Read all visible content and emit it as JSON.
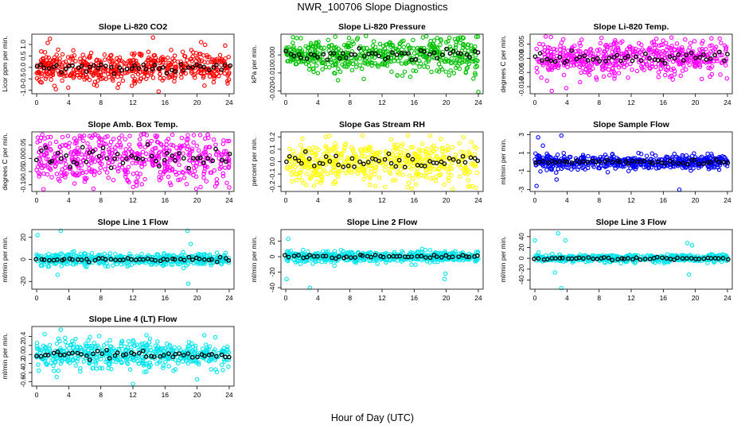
{
  "figure": {
    "title": "NWR_100706  Slope Diagnostics",
    "xlabel": "Hour of Day (UTC)"
  },
  "chart_data": [
    {
      "type": "scatter",
      "title": "Slope Li-820 CO2",
      "ylabel": "Licor ppm per min.",
      "color": "#ff0000",
      "ylim": [
        -1.15,
        1.45
      ],
      "yticks": [
        -1.0,
        -0.5,
        0.0,
        0.5,
        1.0
      ],
      "ytick_labels": [
        "-1.0",
        "-0.5",
        "0.0",
        "0.5",
        "1.0"
      ],
      "xlim": [
        -0.6,
        24.6
      ],
      "xticks": [
        0,
        4,
        8,
        12,
        16,
        20,
        24
      ],
      "xtick_labels": [
        "0",
        "4",
        "8",
        "12",
        "16",
        "20",
        "24"
      ],
      "spread": 0.35,
      "outliers": [
        [
          14.5,
          1.3
        ],
        [
          15.2,
          -1.05
        ],
        [
          2.4,
          -0.95
        ],
        [
          20.5,
          1.1
        ],
        [
          23.5,
          0.95
        ]
      ],
      "seed": 11
    },
    {
      "type": "scatter",
      "title": "Slope Li-820 Pressure",
      "ylabel": "kPa per min.",
      "color": "#00c000",
      "ylim": [
        -0.0215,
        0.0115
      ],
      "yticks": [
        -0.02,
        -0.01,
        0.0
      ],
      "ytick_labels": [
        "-0.020",
        "-0.010",
        "0.000"
      ],
      "xlim": [
        -0.6,
        24.6
      ],
      "xticks": [
        0,
        4,
        8,
        12,
        16,
        20,
        24
      ],
      "xtick_labels": [
        "0",
        "4",
        "8",
        "12",
        "16",
        "20",
        "24"
      ],
      "spread": 0.0045,
      "outliers": [
        [
          24.0,
          -0.0205
        ],
        [
          10.0,
          0.0105
        ],
        [
          6.5,
          -0.014
        ]
      ],
      "seed": 23
    },
    {
      "type": "scatter",
      "title": "Slope Li-820 Temp.",
      "ylabel": "degrees C per min.",
      "color": "#ff00ff",
      "ylim": [
        -0.0125,
        0.0085
      ],
      "yticks": [
        -0.01,
        -0.005,
        0.0,
        0.005
      ],
      "ytick_labels": [
        "-0.010",
        "-0.005",
        "0.000",
        "0.005"
      ],
      "xlim": [
        -0.6,
        24.6
      ],
      "xticks": [
        0,
        4,
        8,
        12,
        16,
        20,
        24
      ],
      "xtick_labels": [
        "0",
        "4",
        "8",
        "12",
        "16",
        "20",
        "24"
      ],
      "spread": 0.003,
      "outliers": [
        [
          2.0,
          0.0075
        ],
        [
          2.1,
          -0.0115
        ],
        [
          3.9,
          -0.0105
        ],
        [
          22.0,
          0.007
        ]
      ],
      "seed": 37
    },
    {
      "type": "scatter",
      "title": "Slope Amb. Box Temp.",
      "ylabel": "degrees C per min.",
      "color": "#ff00ff",
      "ylim": [
        -0.125,
        0.1
      ],
      "yticks": [
        -0.1,
        -0.05,
        0.0,
        0.05
      ],
      "ytick_labels": [
        "-0.10",
        "-0.05",
        "0.00",
        "0.05"
      ],
      "xlim": [
        -0.6,
        24.6
      ],
      "xticks": [
        0,
        4,
        8,
        12,
        16,
        20,
        24
      ],
      "xtick_labels": [
        "0",
        "4",
        "8",
        "12",
        "16",
        "20",
        "24"
      ],
      "spread": 0.05,
      "outliers": [
        [
          19.9,
          -0.115
        ],
        [
          24.0,
          -0.11
        ],
        [
          1.0,
          0.075
        ]
      ],
      "seed": 41
    },
    {
      "type": "scatter",
      "title": "Slope Gas Stream RH",
      "ylabel": "percent per min.",
      "color": "#ffff00",
      "ylim": [
        -0.24,
        0.24
      ],
      "yticks": [
        -0.2,
        -0.1,
        0.0,
        0.1,
        0.2
      ],
      "ytick_labels": [
        "-0.2",
        "-0.1",
        "0.0",
        "0.1",
        "0.2"
      ],
      "xlim": [
        -0.6,
        24.6
      ],
      "xticks": [
        0,
        4,
        8,
        12,
        16,
        20,
        24
      ],
      "xtick_labels": [
        "0",
        "4",
        "8",
        "12",
        "16",
        "20",
        "24"
      ],
      "spread": 0.085,
      "outliers": [
        [
          5.0,
          0.2
        ],
        [
          18.0,
          0.21
        ],
        [
          20.8,
          -0.22
        ]
      ],
      "seed": 53
    },
    {
      "type": "scatter",
      "title": "Slope Sample Flow",
      "ylabel": "ml/min per min.",
      "color": "#0000ff",
      "ylim": [
        -3.2,
        3.3
      ],
      "yticks": [
        -3,
        -1,
        1,
        3
      ],
      "ytick_labels": [
        "-3",
        "-1",
        "1",
        "3"
      ],
      "xlim": [
        -0.6,
        24.6
      ],
      "xticks": [
        0,
        4,
        8,
        12,
        16,
        20,
        24
      ],
      "xtick_labels": [
        "0",
        "4",
        "8",
        "12",
        "16",
        "20",
        "24"
      ],
      "spread": 0.35,
      "outliers": [
        [
          0.4,
          2.7
        ],
        [
          3.3,
          2.9
        ],
        [
          0.2,
          -2.6
        ],
        [
          18.0,
          -3.0
        ],
        [
          1.0,
          1.8
        ],
        [
          2.7,
          -1.9
        ],
        [
          22.0,
          0.9
        ]
      ],
      "seed": 67
    },
    {
      "type": "scatter",
      "title": "Slope Line 1 Flow",
      "ylabel": "ml/min per min.",
      "color": "#00e5ee",
      "ylim": [
        -27,
        27
      ],
      "yticks": [
        -20,
        0,
        20
      ],
      "ytick_labels": [
        "-20",
        "0",
        "20"
      ],
      "xlim": [
        -0.6,
        24.6
      ],
      "xticks": [
        0,
        4,
        8,
        12,
        16,
        20,
        24
      ],
      "xtick_labels": [
        "0",
        "4",
        "8",
        "12",
        "16",
        "20",
        "24"
      ],
      "spread": 2.5,
      "outliers": [
        [
          0.1,
          22
        ],
        [
          3.0,
          26
        ],
        [
          18.8,
          26
        ],
        [
          18.9,
          -22
        ],
        [
          2.6,
          -14
        ],
        [
          19.2,
          14
        ]
      ],
      "seed": 71
    },
    {
      "type": "scatter",
      "title": "Slope Line 2 Flow",
      "ylabel": "ml/min per min.",
      "color": "#00e5ee",
      "ylim": [
        -42,
        35
      ],
      "yticks": [
        -40,
        -20,
        0,
        20
      ],
      "ytick_labels": [
        "-40",
        "-20",
        "0",
        "20"
      ],
      "xlim": [
        -0.6,
        24.6
      ],
      "xticks": [
        0,
        4,
        8,
        12,
        16,
        20,
        24
      ],
      "xtick_labels": [
        "0",
        "4",
        "8",
        "12",
        "16",
        "20",
        "24"
      ],
      "spread": 3.5,
      "outliers": [
        [
          0.1,
          -29
        ],
        [
          0.3,
          23
        ],
        [
          3.0,
          -40
        ],
        [
          19.8,
          -29
        ],
        [
          19.9,
          -22
        ]
      ],
      "seed": 83
    },
    {
      "type": "scatter",
      "title": "Slope Line 3 Flow",
      "ylabel": "ml/min per min.",
      "color": "#00e5ee",
      "ylim": [
        -57,
        53
      ],
      "yticks": [
        -40,
        -20,
        0,
        20,
        40
      ],
      "ytick_labels": [
        "-40",
        "-20",
        "0",
        "20",
        "40"
      ],
      "xlim": [
        -0.6,
        24.6
      ],
      "xticks": [
        0,
        4,
        8,
        12,
        16,
        20,
        24
      ],
      "xtick_labels": [
        "0",
        "4",
        "8",
        "12",
        "16",
        "20",
        "24"
      ],
      "spread": 3.5,
      "outliers": [
        [
          2.9,
          46
        ],
        [
          3.3,
          -55
        ],
        [
          0.0,
          33
        ],
        [
          19.0,
          28
        ],
        [
          19.2,
          -30
        ],
        [
          19.6,
          24
        ],
        [
          2.5,
          -26
        ],
        [
          3.8,
          33
        ]
      ],
      "seed": 97
    },
    {
      "type": "scatter",
      "title": "Slope Line 4 (LT) Flow",
      "ylabel": "ml/min per min.",
      "color": "#00e5ee",
      "ylim": [
        -0.7,
        0.62
      ],
      "yticks": [
        -0.6,
        -0.4,
        -0.2,
        0.0,
        0.2,
        0.4
      ],
      "ytick_labels": [
        "-0.6",
        "-0.4",
        "-0.2",
        "0.0",
        "0.2",
        "0.4"
      ],
      "xlim": [
        -0.6,
        24.6
      ],
      "xticks": [
        0,
        4,
        8,
        12,
        16,
        20,
        24
      ],
      "xtick_labels": [
        "0",
        "4",
        "8",
        "12",
        "16",
        "20",
        "24"
      ],
      "spread": 0.15,
      "outliers": [
        [
          3.0,
          0.55
        ],
        [
          12.0,
          -0.65
        ],
        [
          1.0,
          0.45
        ],
        [
          20.0,
          -0.55
        ],
        [
          2.5,
          -0.5
        ]
      ],
      "seed": 101
    }
  ]
}
